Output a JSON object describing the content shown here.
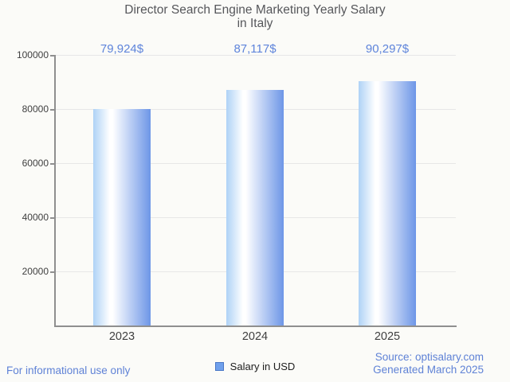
{
  "chart_data": {
    "type": "bar",
    "title": "Director Search Engine Marketing Yearly Salary in Italy",
    "title_lines": [
      "Director Search Engine Marketing Yearly Salary",
      "in Italy"
    ],
    "categories": [
      "2023",
      "2024",
      "2025"
    ],
    "values": [
      79924,
      87117,
      90297
    ],
    "value_labels": [
      "79,924$",
      "87,117$",
      "90,297$"
    ],
    "series": [
      {
        "name": "Salary in USD",
        "values": [
          79924,
          87117,
          90297
        ]
      }
    ],
    "ylim": [
      0,
      100000
    ],
    "yticks": [
      100000,
      80000,
      60000,
      40000,
      20000
    ],
    "ytick_labels": [
      "100000",
      "80000",
      "60000",
      "40000",
      "20000"
    ],
    "xlabel": "",
    "ylabel": "",
    "grid": true,
    "legend_position": "bottom"
  },
  "legend": {
    "label": "Salary in USD"
  },
  "footer": {
    "disclaimer": "For informational use only",
    "source": "Source: optisalary.com",
    "generated": "Generated March 2025"
  },
  "colors": {
    "accent_blue": "#5e84db",
    "footer_blue": "#5f82d6",
    "bar_gradient_left": "#aed2f6",
    "bar_gradient_mid": "#ffffff",
    "bar_gradient_right": "#6d96e7",
    "legend_marker_fill": "#6fa0ec",
    "legend_marker_border": "#4977c6",
    "title_text": "#56575b",
    "axis_text": "#404040",
    "legend_text": "#202020",
    "grid_line": "#e7e7e7",
    "axis_line": "#8f8f8f",
    "background": "#fbfbf8"
  }
}
